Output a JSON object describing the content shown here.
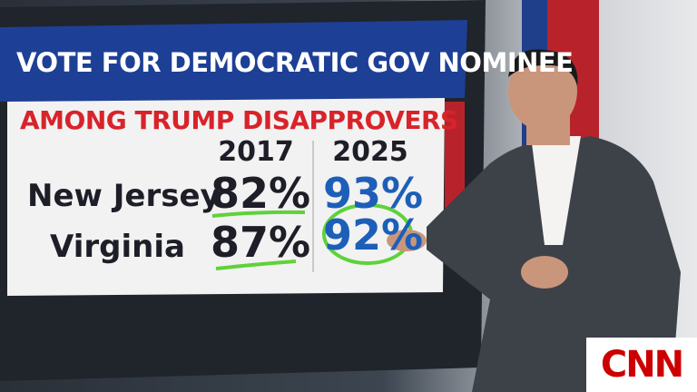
{
  "header": {
    "title": "VOTE FOR DEMOCRATIC GOV NOMINEE",
    "subtitle": "AMONG TRUMP DISAPPROVERS"
  },
  "table": {
    "columns": [
      "",
      "2017",
      "2025"
    ],
    "rows": [
      [
        "New Jersey",
        "82%",
        "93%"
      ],
      [
        "Virginia",
        "87%",
        "92%"
      ]
    ]
  },
  "logo": "CNN"
}
